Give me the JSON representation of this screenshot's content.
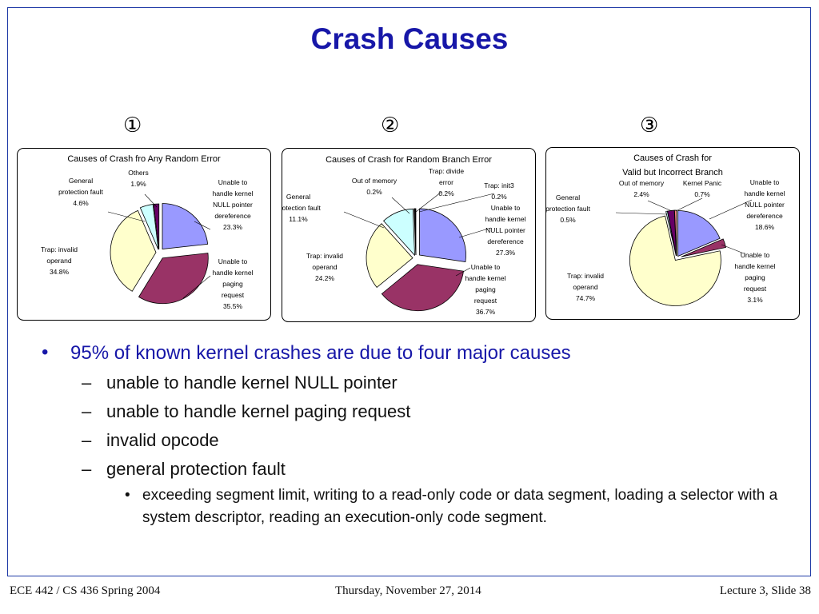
{
  "slide": {
    "title": "Crash Causes",
    "numbers": [
      "①",
      "②",
      "③"
    ],
    "bullets": {
      "main": "95% of known kernel crashes are due to four major causes",
      "subs": [
        "unable to handle kernel NULL pointer",
        "unable to handle kernel paging request",
        "invalid opcode",
        "general protection fault"
      ],
      "subsub": "exceeding segment limit, writing to a read-only code or data segment, loading a selector with a system descriptor, reading an execution-only code segment."
    },
    "footer": {
      "left": "ECE 442 / CS 436 Spring 2004",
      "center": "Thursday, November 27, 2014",
      "right": "Lecture 3, Slide 38"
    }
  },
  "chart_data": [
    {
      "type": "pie",
      "title": "Causes of Crash fro Any Random Error",
      "slices": [
        {
          "label": [
            "Unable to",
            "handle kernel",
            "NULL pointer",
            "dereference",
            "23.3%"
          ],
          "value": 23.3,
          "color": "#9999ff"
        },
        {
          "label": [
            "Unable to",
            "handle kernel",
            "paging",
            "request",
            "35.5%"
          ],
          "value": 35.5,
          "color": "#993366"
        },
        {
          "label": [
            "Trap: invalid",
            "operand",
            "34.8%"
          ],
          "value": 34.8,
          "color": "#ffffcc"
        },
        {
          "label": [
            "General",
            "protection fault",
            "4.6%"
          ],
          "value": 4.6,
          "color": "#ccffff"
        },
        {
          "label": [
            "Others",
            "1.9%"
          ],
          "value": 1.9,
          "color": "#660066"
        }
      ]
    },
    {
      "type": "pie",
      "title": "Causes of Crash for Random Branch Error",
      "slices": [
        {
          "label": [
            "Unable to",
            "handle kernel",
            "NULL pointer",
            "dereference",
            "27.3%"
          ],
          "value": 27.3,
          "color": "#9999ff"
        },
        {
          "label": [
            "Unable to",
            "handle kernel",
            "paging",
            "request",
            "36.7%"
          ],
          "value": 36.7,
          "color": "#993366"
        },
        {
          "label": [
            "Trap: invalid",
            "operand",
            "24.2%"
          ],
          "value": 24.2,
          "color": "#ffffcc"
        },
        {
          "label": [
            "General",
            "protection fault",
            "11.1%"
          ],
          "value": 11.1,
          "color": "#ccffff"
        },
        {
          "label": [
            "Out of memory",
            "0.2%"
          ],
          "value": 0.2,
          "color": "#660066"
        },
        {
          "label": [
            "Trap: divide",
            "error",
            "0.2%"
          ],
          "value": 0.2,
          "color": "#ff8080"
        },
        {
          "label": [
            "Trap: init3",
            "0.2%"
          ],
          "value": 0.2,
          "color": "#0066cc"
        }
      ]
    },
    {
      "type": "pie",
      "title": [
        "Causes of Crash for",
        "Valid but Incorrect Branch"
      ],
      "slices": [
        {
          "label": [
            "Unable to",
            "handle kernel",
            "NULL pointer",
            "dereference",
            "18.6%"
          ],
          "value": 18.6,
          "color": "#9999ff"
        },
        {
          "label": [
            "Unable to",
            "handle kernel",
            "paging",
            "request",
            "3.1%"
          ],
          "value": 3.1,
          "color": "#993366"
        },
        {
          "label": [
            "Trap: invalid",
            "operand",
            "74.7%"
          ],
          "value": 74.7,
          "color": "#ffffcc"
        },
        {
          "label": [
            "General",
            "protection fault",
            "0.5%"
          ],
          "value": 0.5,
          "color": "#ccffff"
        },
        {
          "label": [
            "Out of memory",
            "2.4%"
          ],
          "value": 2.4,
          "color": "#660066"
        },
        {
          "label": [
            "Kernel Panic",
            "0.7%"
          ],
          "value": 0.7,
          "color": "#ff8080"
        }
      ]
    }
  ]
}
